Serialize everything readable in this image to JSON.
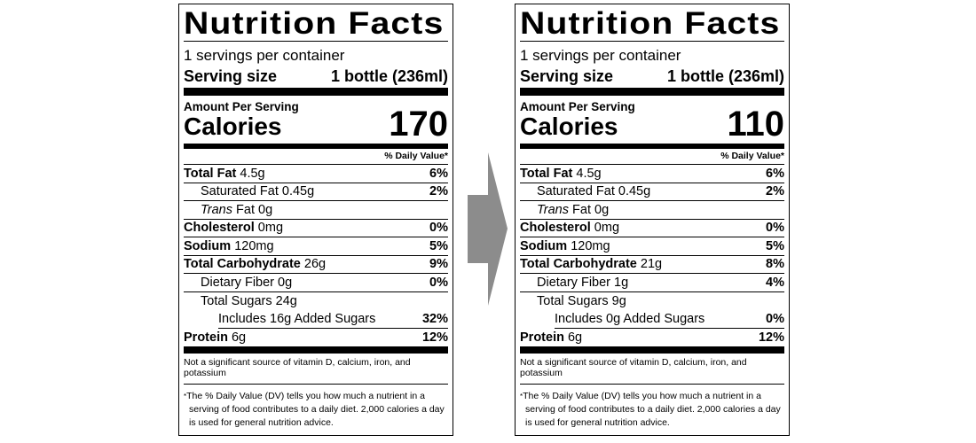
{
  "labels": [
    {
      "title": "Nutrition Facts",
      "servings_per_container": "1 servings per container",
      "serving_size_label": "Serving size",
      "serving_size_value": "1 bottle (236ml)",
      "amount_per_serving": "Amount Per Serving",
      "calories_label": "Calories",
      "calories_value": "170",
      "daily_value_header": "% Daily Value*",
      "total_fat": {
        "name": "Total Fat",
        "amount": "4.5g",
        "dv": "6%"
      },
      "saturated_fat": {
        "name": "Saturated Fat",
        "amount": "0.45g",
        "dv": "2%"
      },
      "trans_fat": {
        "name_italic": "Trans",
        "name": "Fat",
        "amount": "0g"
      },
      "cholesterol": {
        "name": "Cholesterol",
        "amount": "0mg",
        "dv": "0%"
      },
      "sodium": {
        "name": "Sodium",
        "amount": "120mg",
        "dv": "5%"
      },
      "total_carbohydrate": {
        "name": "Total Carbohydrate",
        "amount": "26g",
        "dv": "9%"
      },
      "dietary_fiber": {
        "name": "Dietary Fiber",
        "amount": "0g",
        "dv": "0%"
      },
      "total_sugars": {
        "name": "Total Sugars",
        "amount": "24g"
      },
      "added_sugars": {
        "text": "Includes 16g Added Sugars",
        "dv": "32%"
      },
      "protein": {
        "name": "Protein",
        "amount": "6g",
        "dv": "12%"
      },
      "note": "Not a significant source of vitamin D, calcium, iron, and potassium",
      "footnote_star": "*",
      "footnote": "The % Daily Value (DV) tells you how much a nutrient in a serving of food contributes to a daily diet. 2,000 calories a day is used for general nutrition advice."
    },
    {
      "title": "Nutrition Facts",
      "servings_per_container": "1 servings per container",
      "serving_size_label": "Serving size",
      "serving_size_value": "1 bottle (236ml)",
      "amount_per_serving": "Amount Per Serving",
      "calories_label": "Calories",
      "calories_value": "110",
      "daily_value_header": "% Daily Value*",
      "total_fat": {
        "name": "Total Fat",
        "amount": "4.5g",
        "dv": "6%"
      },
      "saturated_fat": {
        "name": "Saturated Fat",
        "amount": "0.45g",
        "dv": "2%"
      },
      "trans_fat": {
        "name_italic": "Trans",
        "name": "Fat",
        "amount": "0g"
      },
      "cholesterol": {
        "name": "Cholesterol",
        "amount": "0mg",
        "dv": "0%"
      },
      "sodium": {
        "name": "Sodium",
        "amount": "120mg",
        "dv": "5%"
      },
      "total_carbohydrate": {
        "name": "Total Carbohydrate",
        "amount": "21g",
        "dv": "8%"
      },
      "dietary_fiber": {
        "name": "Dietary Fiber",
        "amount": "1g",
        "dv": "4%"
      },
      "total_sugars": {
        "name": "Total Sugars",
        "amount": "9g"
      },
      "added_sugars": {
        "text": "Includes 0g Added Sugars",
        "dv": "0%"
      },
      "protein": {
        "name": "Protein",
        "amount": "6g",
        "dv": "12%"
      },
      "note": "Not a significant source of vitamin D, calcium, iron, and potassium",
      "footnote_star": "*",
      "footnote": "The % Daily Value (DV) tells you how much a nutrient in a serving of food contributes to a daily diet. 2,000 calories a day is used for general nutrition advice."
    }
  ],
  "colors": {
    "text": "#000000",
    "background": "#ffffff",
    "arrow": "#8c8c8c"
  },
  "icons": {
    "arrow": "right-arrow-icon"
  }
}
